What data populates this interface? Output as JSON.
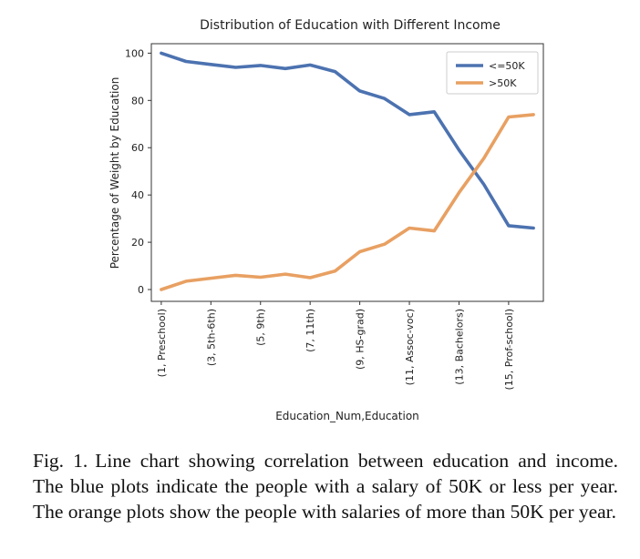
{
  "chart_data": {
    "type": "line",
    "title": "Distribution of Education with Different Income",
    "xlabel": "Education_Num,Education",
    "ylabel": "Percentage of Weight by Education",
    "x_tick_labels": [
      "(1, Preschool)",
      "(3, 5th-6th)",
      "(5, 9th)",
      "(7, 11th)",
      "(9, HS-grad)",
      "(11, Assoc-voc)",
      "(13, Bachelors)",
      "(15, Prof-school)"
    ],
    "x_tick_values": [
      1,
      3,
      5,
      7,
      9,
      11,
      13,
      15
    ],
    "x": [
      1,
      2,
      3,
      4,
      5,
      6,
      7,
      8,
      9,
      10,
      11,
      12,
      13,
      14,
      15,
      16
    ],
    "xlim": [
      0.6,
      16.4
    ],
    "ylim": [
      -5,
      104
    ],
    "y_ticks": [
      0,
      20,
      40,
      60,
      80,
      100
    ],
    "grid": false,
    "legend_position": "top-right",
    "series": [
      {
        "name": "<=50K",
        "color": "#4c72b0",
        "values": [
          100,
          96.5,
          95.2,
          94,
          94.8,
          93.5,
          95,
          92.2,
          84,
          80.8,
          74,
          75.2,
          59,
          44.5,
          27,
          26
        ]
      },
      {
        "name": ">50K",
        "color": "#e8a062",
        "values": [
          0,
          3.5,
          4.8,
          6,
          5.2,
          6.5,
          5,
          7.8,
          16,
          19.2,
          26,
          24.8,
          41,
          55.5,
          73,
          74
        ]
      }
    ]
  },
  "caption": {
    "label": "Fig. 1.",
    "text": "Line chart showing correlation between education and income. The blue plots indicate the people with a salary of 50K or less per year. The orange plots show the people with salaries of more than 50K per year."
  }
}
